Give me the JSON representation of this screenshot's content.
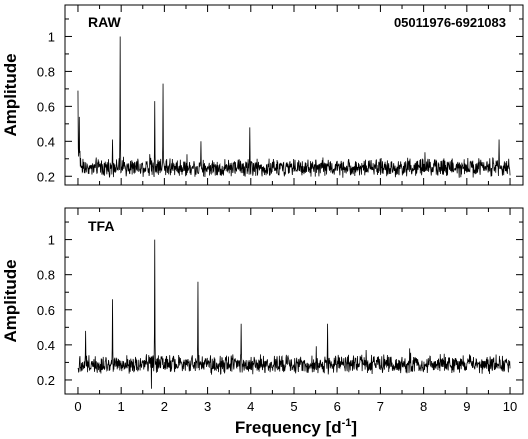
{
  "chart_data": [
    {
      "type": "line",
      "panel_label": "RAW",
      "annotation": "05011976-6921083",
      "title": "",
      "xlabel": "",
      "ylabel": "Amplitude",
      "xlim": [
        -0.3,
        10.3
      ],
      "ylim": [
        0.15,
        1.18
      ],
      "y_ticks": [
        0.2,
        0.4,
        0.6,
        0.8,
        1
      ],
      "y_tick_labels": [
        "0.2",
        "0.4",
        "0.6",
        "0.8",
        "1"
      ],
      "x_ticks": [
        0,
        1,
        2,
        3,
        4,
        5,
        6,
        7,
        8,
        9,
        10
      ],
      "noise_floor": 0.25,
      "peaks": [
        {
          "x": 0.0,
          "y": 0.69
        },
        {
          "x": 0.03,
          "y": 0.54
        },
        {
          "x": 0.8,
          "y": 0.41
        },
        {
          "x": 0.98,
          "y": 1.0
        },
        {
          "x": 1.78,
          "y": 0.63
        },
        {
          "x": 1.97,
          "y": 0.73
        },
        {
          "x": 2.85,
          "y": 0.4
        },
        {
          "x": 3.98,
          "y": 0.48
        },
        {
          "x": 9.75,
          "y": 0.41
        }
      ]
    },
    {
      "type": "line",
      "panel_label": "TFA",
      "title": "",
      "xlabel": "Frequency [d-1]",
      "xlabel_main": "Frequency [d",
      "xlabel_sup": "-1",
      "xlabel_end": "]",
      "ylabel": "Amplitude",
      "xlim": [
        -0.3,
        10.3
      ],
      "ylim": [
        0.12,
        1.18
      ],
      "y_ticks": [
        0.2,
        0.4,
        0.6,
        0.8,
        1
      ],
      "y_tick_labels": [
        "0.2",
        "0.4",
        "0.6",
        "0.8",
        "1"
      ],
      "x_ticks": [
        0,
        1,
        2,
        3,
        4,
        5,
        6,
        7,
        8,
        9,
        10
      ],
      "x_tick_labels": [
        "0",
        "1",
        "2",
        "3",
        "4",
        "5",
        "6",
        "7",
        "8",
        "9",
        "10"
      ],
      "noise_floor": 0.29,
      "peaks": [
        {
          "x": 0.18,
          "y": 0.48
        },
        {
          "x": 0.8,
          "y": 0.66
        },
        {
          "x": 1.7,
          "y": 0.15
        },
        {
          "x": 1.78,
          "y": 1.0
        },
        {
          "x": 2.78,
          "y": 0.76
        },
        {
          "x": 3.78,
          "y": 0.52
        },
        {
          "x": 5.78,
          "y": 0.52
        }
      ]
    }
  ]
}
